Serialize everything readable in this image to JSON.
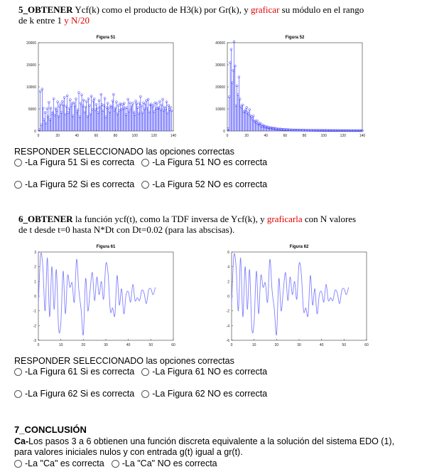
{
  "q5": {
    "line1_a": "5_OBTENER",
    "line1_b": " Ycf(k) como el producto de H3(k) por Gr(k), y ",
    "line1_c": "graficar",
    "line1_d": " su módulo en el rango",
    "line2_a": "de k entre 1 ",
    "line2_b": "y N/20",
    "responder": "RESPONDER SELECCIONADO las opciones correctas",
    "opt_51_yes": "-La Figura 51 Si es correcta",
    "opt_51_no": "-La Figura 51 NO es correcta",
    "opt_52_yes": "-La Figura 52 Si es correcta",
    "opt_52_no": "-La Figura 52 NO es correcta"
  },
  "q6": {
    "line1_a": "6_OBTENER",
    "line1_b": " la función ycf(t), como la TDF inversa de Ycf(k), y ",
    "line1_c": "graficarla",
    "line1_d": " con N valores",
    "line2": "de t desde t=0 hasta N*Dt con Dt=0.02 (para las abscisas).",
    "responder": "RESPONDER SELECCIONADO las opciones correctas",
    "opt_61_yes": "-La Figura 61 Si es correcta",
    "opt_61_no": "-La Figura 61 NO es correcta",
    "opt_62_yes": "-La Figura 62 Si es correcta",
    "opt_62_no": "-La Figura 62 NO es correcta"
  },
  "q7": {
    "title": "7_CONCLUSIÓN",
    "body_a": "Ca-",
    "body_b": "Los pasos 3 a 6 obtienen una función discreta equivalente a la solución del sistema EDO (1),",
    "body_c": "para valores iniciales nulos y con entrada g(t) igual a gr(t).",
    "opt_yes": "-La \"Ca\" es correcta",
    "opt_no": "-La \"Ca\" NO es correcta"
  },
  "chart_data": [
    {
      "type": "bar",
      "title": "Figura 51",
      "xlim": [
        0,
        140
      ],
      "ylim": [
        0,
        20000
      ],
      "xticks": [
        "0",
        "20",
        "40",
        "60",
        "80",
        "100",
        "120",
        "140"
      ],
      "yticks": [
        "0",
        "5000",
        "10000",
        "15000",
        "20000"
      ],
      "series_color": "#3b3bff",
      "values": [
        300,
        9000,
        1400,
        9500,
        5200,
        2600,
        4200,
        1800,
        5100,
        3300,
        6500,
        2600,
        5200,
        3900,
        4300,
        7300,
        3600,
        5100,
        4600,
        6600,
        3300,
        5600,
        6100,
        4200,
        6700,
        5900,
        7600,
        3800,
        5600,
        8000,
        4200,
        5100,
        7100,
        5700,
        6300,
        3400,
        6400,
        5700,
        7300,
        4300,
        4800,
        8700,
        3200,
        6300,
        8200,
        5700,
        7000,
        4300,
        5400,
        6700,
        3300,
        7300,
        5800,
        3800,
        7900,
        4900,
        6800,
        7300,
        4800,
        6000,
        5200,
        4200,
        6900,
        5400,
        8300,
        6000,
        4600,
        5800,
        7400,
        3200,
        5300,
        6300,
        5200,
        4300,
        5700,
        5400,
        6800,
        8300,
        4700,
        5200,
        6600,
        3900,
        5800,
        4700,
        6200,
        4900,
        6000,
        5100,
        6300,
        5200,
        3700,
        5300,
        7200,
        4500,
        6400,
        5100,
        5700,
        6300,
        4300,
        3700,
        6800,
        6200,
        5300,
        4000,
        6300,
        7800,
        5700,
        4100,
        6400,
        5000,
        6100,
        6900,
        5200,
        7200,
        4300,
        5900,
        6100,
        5400,
        5800,
        4400,
        6400,
        5100,
        6300,
        5100,
        5300,
        6700,
        4800,
        5900,
        7200,
        4700,
        5400,
        5000,
        6600,
        4100,
        5800,
        4900,
        5400,
        4600
      ]
    },
    {
      "type": "bar",
      "title": "Figura 52",
      "xlim": [
        0,
        140
      ],
      "ylim": [
        0,
        40000
      ],
      "xticks": [
        "0",
        "20",
        "40",
        "60",
        "80",
        "100",
        "120",
        "140"
      ],
      "yticks": [
        "0",
        "10000",
        "20000",
        "30000",
        "40000"
      ],
      "series_color": "#3b3bff",
      "values": [
        1000,
        15500,
        31000,
        37000,
        22000,
        27500,
        40500,
        29500,
        11500,
        20500,
        16500,
        24500,
        14500,
        11200,
        10500,
        11800,
        8800,
        8600,
        9600,
        10700,
        8400,
        7800,
        9700,
        7000,
        6400,
        5400,
        6800,
        4300,
        4600,
        3900,
        4600,
        3200,
        3100,
        3600,
        2300,
        2800,
        2100,
        2500,
        1900,
        1700,
        2000,
        1500,
        1600,
        1400,
        1300,
        1500,
        1200,
        1100,
        1300,
        1000,
        900,
        1000,
        850,
        800,
        900,
        700,
        750,
        650,
        700,
        600,
        650,
        550,
        600,
        520,
        500,
        480,
        520,
        460,
        440,
        430,
        420,
        400,
        410,
        390,
        380,
        370,
        360,
        360,
        350,
        340,
        330,
        330,
        320,
        310,
        310,
        300,
        300,
        290,
        290,
        280,
        280,
        270,
        270,
        260,
        260,
        250,
        250,
        250,
        240,
        240,
        240,
        230,
        230,
        230,
        220,
        220,
        220,
        210,
        210,
        210,
        200,
        200,
        200,
        200,
        190,
        190,
        190,
        190,
        180,
        180,
        180,
        180,
        180,
        170,
        170,
        170,
        170,
        170,
        160,
        160,
        160,
        160,
        160,
        160,
        150,
        150,
        150,
        150,
        150,
        150
      ]
    },
    {
      "type": "line",
      "title": "Figura 61",
      "xlim": [
        0,
        60
      ],
      "ylim": [
        -3,
        3
      ],
      "xticks": [
        "0",
        "10",
        "20",
        "30",
        "40",
        "50",
        "60"
      ],
      "yticks": [
        "-3",
        "-2",
        "-1",
        "0",
        "1",
        "2",
        "3"
      ],
      "series_color": "#8080ff",
      "x": [
        0,
        1,
        2,
        3,
        4,
        5,
        6,
        7,
        8,
        9,
        10,
        11,
        12,
        13,
        14,
        15,
        16,
        17,
        18,
        19,
        20,
        21,
        22,
        23,
        24,
        25,
        26,
        27,
        28,
        29,
        30,
        31,
        32,
        33,
        34,
        35,
        36,
        37,
        38,
        39,
        40,
        41,
        42,
        43,
        44,
        45,
        46,
        47,
        48,
        49,
        50,
        51,
        52
      ],
      "y": [
        -0.5,
        2.8,
        2.0,
        -1.0,
        2.6,
        -1.4,
        2.0,
        -0.9,
        1.8,
        -2.2,
        -1.8,
        1.7,
        -1.2,
        1.4,
        0.6,
        0.9,
        -0.4,
        2.5,
        0.4,
        -0.9,
        -2.6,
        1.2,
        -1.0,
        0.4,
        1.6,
        -0.3,
        1.3,
        0.1,
        1.0,
        -0.2,
        2.2,
        1.5,
        -1.0,
        -0.8,
        -1.3,
        1.4,
        -0.6,
        0.5,
        -1.2,
        0.1,
        0.3,
        -0.4,
        0.8,
        -0.3,
        -0.1,
        -0.3,
        0.4,
        0.2,
        -0.5,
        0.4,
        0.5,
        0.1,
        0.6
      ]
    },
    {
      "type": "line",
      "title": "Figura 62",
      "xlim": [
        0,
        60
      ],
      "ylim": [
        -6,
        6
      ],
      "xticks": [
        "0",
        "10",
        "20",
        "30",
        "40",
        "50",
        "60"
      ],
      "yticks": [
        "-6",
        "-4",
        "-2",
        "0",
        "2",
        "4",
        "6"
      ],
      "series_color": "#8080ff",
      "x": [
        0,
        1,
        2,
        3,
        4,
        5,
        6,
        7,
        8,
        9,
        10,
        11,
        12,
        13,
        14,
        15,
        16,
        17,
        18,
        19,
        20,
        21,
        22,
        23,
        24,
        25,
        26,
        27,
        28,
        29,
        30,
        31,
        32,
        33,
        34,
        35,
        36,
        37,
        38,
        39,
        40,
        41,
        42,
        43,
        44,
        45,
        46,
        47,
        48,
        49,
        50,
        51,
        52
      ],
      "y": [
        -1.0,
        5.5,
        4.0,
        -2.0,
        5.2,
        -2.8,
        4.0,
        -1.8,
        3.6,
        -4.4,
        -3.6,
        3.4,
        -2.4,
        2.8,
        1.2,
        1.8,
        -0.8,
        5.0,
        0.8,
        -1.8,
        -5.2,
        2.4,
        -2.0,
        0.8,
        3.2,
        -0.6,
        2.6,
        0.2,
        2.0,
        -0.4,
        4.4,
        3.0,
        -2.0,
        -1.6,
        -2.6,
        2.8,
        -1.2,
        1.0,
        -2.4,
        0.2,
        0.6,
        -0.8,
        1.6,
        -0.6,
        -0.2,
        -0.6,
        0.8,
        0.4,
        -1.0,
        0.8,
        1.0,
        0.2,
        1.2
      ]
    }
  ]
}
